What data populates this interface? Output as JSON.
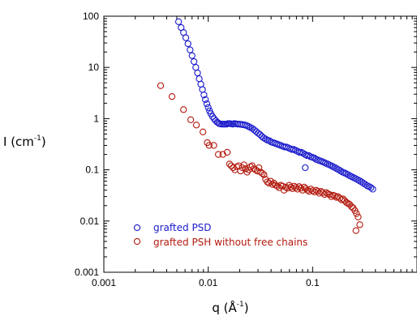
{
  "chart_data": {
    "type": "scatter",
    "xscale": "log",
    "yscale": "log",
    "xlim": [
      0.001,
      1
    ],
    "ylim": [
      0.001,
      100
    ],
    "xticks": [
      0.001,
      0.01,
      0.1
    ],
    "xtick_labels": [
      "0.001",
      "0.01",
      "0.1"
    ],
    "yticks": [
      0.001,
      0.01,
      0.1,
      1,
      10,
      100
    ],
    "ytick_labels": [
      "0.001",
      "0.01",
      "0.1",
      "1",
      "10",
      "100"
    ],
    "xlabel": "q (Å",
    "xlabel_sup": "-1",
    "xlabel_close": ")",
    "ylabel": "I (cm",
    "ylabel_sup": "-1",
    "ylabel_close": ")",
    "grid": false,
    "legend_position": "bottom-left",
    "series": [
      {
        "name": "grafted PSD",
        "color": "#1a1acc",
        "marker": "open-circle",
        "x": [
          0.0052,
          0.0055,
          0.0058,
          0.0061,
          0.0064,
          0.0067,
          0.007,
          0.0073,
          0.0076,
          0.0079,
          0.0082,
          0.0085,
          0.0088,
          0.0091,
          0.0094,
          0.0097,
          0.01,
          0.0103,
          0.0106,
          0.011,
          0.0114,
          0.0118,
          0.0122,
          0.0126,
          0.013,
          0.0135,
          0.014,
          0.0145,
          0.015,
          0.0155,
          0.016,
          0.0166,
          0.0172,
          0.0178,
          0.0185,
          0.0192,
          0.02,
          0.0208,
          0.0216,
          0.0225,
          0.0234,
          0.0244,
          0.0254,
          0.0265,
          0.0276,
          0.0288,
          0.03,
          0.0313,
          0.0326,
          0.034,
          0.0354,
          0.0369,
          0.0385,
          0.0401,
          0.0418,
          0.0436,
          0.0454,
          0.0473,
          0.0493,
          0.0514,
          0.0536,
          0.0558,
          0.0582,
          0.0606,
          0.0632,
          0.0659,
          0.0687,
          0.0716,
          0.0746,
          0.0778,
          0.081,
          0.0845,
          0.088,
          0.0917,
          0.0956,
          0.0997,
          0.104,
          0.108,
          0.113,
          0.118,
          0.123,
          0.128,
          0.133,
          0.139,
          0.145,
          0.151,
          0.157,
          0.164,
          0.171,
          0.178,
          0.186,
          0.194,
          0.202,
          0.21,
          0.219,
          0.229,
          0.238,
          0.249,
          0.259,
          0.27,
          0.282,
          0.294,
          0.306,
          0.319,
          0.333,
          0.347,
          0.362,
          0.377,
          0.085
        ],
        "y": [
          78,
          60,
          48,
          38,
          29,
          22,
          17,
          13,
          10,
          7.8,
          6,
          4.7,
          3.7,
          2.9,
          2.35,
          1.95,
          1.65,
          1.42,
          1.25,
          1.1,
          0.99,
          0.91,
          0.85,
          0.81,
          0.79,
          0.78,
          0.78,
          0.78,
          0.78,
          0.8,
          0.8,
          0.79,
          0.78,
          0.8,
          0.79,
          0.78,
          0.78,
          0.77,
          0.76,
          0.75,
          0.73,
          0.7,
          0.67,
          0.64,
          0.6,
          0.56,
          0.52,
          0.49,
          0.45,
          0.42,
          0.4,
          0.38,
          0.37,
          0.35,
          0.34,
          0.33,
          0.32,
          0.31,
          0.3,
          0.29,
          0.28,
          0.28,
          0.27,
          0.26,
          0.25,
          0.25,
          0.24,
          0.23,
          0.22,
          0.22,
          0.21,
          0.2,
          0.19,
          0.19,
          0.18,
          0.175,
          0.17,
          0.16,
          0.155,
          0.15,
          0.145,
          0.14,
          0.135,
          0.13,
          0.125,
          0.12,
          0.115,
          0.11,
          0.105,
          0.1,
          0.095,
          0.09,
          0.087,
          0.084,
          0.08,
          0.076,
          0.073,
          0.07,
          0.067,
          0.064,
          0.061,
          0.058,
          0.055,
          0.052,
          0.049,
          0.047,
          0.045,
          0.042,
          0.11
        ]
      },
      {
        "name": "grafted PSH without free chains",
        "color": "#b31a0f",
        "marker": "open-circle",
        "x": [
          0.0035,
          0.0045,
          0.0058,
          0.0068,
          0.0077,
          0.0089,
          0.0098,
          0.0102,
          0.0113,
          0.0125,
          0.0138,
          0.0152,
          0.016,
          0.0166,
          0.0173,
          0.018,
          0.0188,
          0.0196,
          0.0204,
          0.0212,
          0.022,
          0.0228,
          0.0236,
          0.0245,
          0.0254,
          0.0264,
          0.0274,
          0.0284,
          0.0295,
          0.0306,
          0.0318,
          0.033,
          0.0342,
          0.0355,
          0.0368,
          0.0382,
          0.0397,
          0.0412,
          0.0427,
          0.0443,
          0.046,
          0.0477,
          0.0495,
          0.0514,
          0.0533,
          0.0553,
          0.0574,
          0.0596,
          0.0618,
          0.0641,
          0.0665,
          0.069,
          0.0716,
          0.0743,
          0.0771,
          0.08,
          0.083,
          0.0861,
          0.0893,
          0.0927,
          0.0962,
          0.0998,
          0.104,
          0.108,
          0.112,
          0.116,
          0.12,
          0.125,
          0.13,
          0.135,
          0.14,
          0.145,
          0.151,
          0.157,
          0.163,
          0.169,
          0.175,
          0.182,
          0.189,
          0.196,
          0.203,
          0.211,
          0.219,
          0.227,
          0.236,
          0.245,
          0.254,
          0.263,
          0.273,
          0.283,
          0.26
        ],
        "y": [
          4.4,
          2.7,
          1.5,
          0.95,
          0.75,
          0.55,
          0.34,
          0.3,
          0.3,
          0.2,
          0.2,
          0.22,
          0.13,
          0.12,
          0.11,
          0.1,
          0.115,
          0.12,
          0.095,
          0.11,
          0.125,
          0.105,
          0.09,
          0.1,
          0.115,
          0.12,
          0.105,
          0.1,
          0.095,
          0.11,
          0.09,
          0.085,
          0.08,
          0.065,
          0.058,
          0.055,
          0.06,
          0.052,
          0.055,
          0.05,
          0.048,
          0.045,
          0.05,
          0.048,
          0.04,
          0.046,
          0.044,
          0.05,
          0.046,
          0.043,
          0.048,
          0.045,
          0.042,
          0.047,
          0.044,
          0.04,
          0.046,
          0.043,
          0.04,
          0.038,
          0.042,
          0.039,
          0.037,
          0.04,
          0.038,
          0.035,
          0.038,
          0.036,
          0.033,
          0.036,
          0.034,
          0.033,
          0.03,
          0.032,
          0.031,
          0.029,
          0.03,
          0.028,
          0.026,
          0.027,
          0.025,
          0.023,
          0.022,
          0.021,
          0.019,
          0.018,
          0.016,
          0.014,
          0.012,
          0.0085,
          0.0065
        ]
      }
    ]
  }
}
